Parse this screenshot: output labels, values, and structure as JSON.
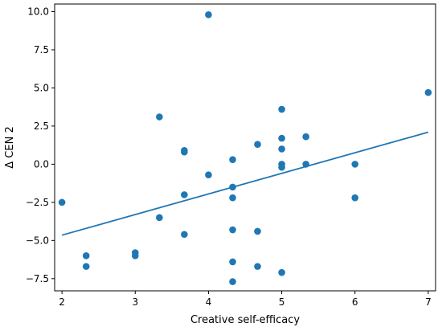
{
  "chart_data": {
    "type": "scatter",
    "title": "",
    "xlabel": "Creative self-efficacy",
    "ylabel": "Δ CEN 2",
    "xlim": [
      1.9,
      7.1
    ],
    "ylim": [
      -8.3,
      10.5
    ],
    "xticks": [
      2,
      3,
      4,
      5,
      6,
      7
    ],
    "yticks": [
      -7.5,
      -5.0,
      -2.5,
      0.0,
      2.5,
      5.0,
      7.5,
      10.0
    ],
    "xtick_labels": [
      "2",
      "3",
      "4",
      "5",
      "6",
      "7"
    ],
    "ytick_labels": [
      "−7.5",
      "−5.0",
      "−2.5",
      "0.0",
      "2.5",
      "5.0",
      "7.5",
      "10.0"
    ],
    "grid": false,
    "colors": {
      "points": "#1f77b4",
      "line": "#1f77b4"
    },
    "series": [
      {
        "type": "scatter",
        "points": [
          [
            2.0,
            -2.5
          ],
          [
            2.33,
            -6.0
          ],
          [
            2.33,
            -6.7
          ],
          [
            3.0,
            -5.8
          ],
          [
            3.0,
            -6.0
          ],
          [
            3.33,
            3.1
          ],
          [
            3.33,
            -3.5
          ],
          [
            3.67,
            0.9
          ],
          [
            3.67,
            0.8
          ],
          [
            3.67,
            -2.0
          ],
          [
            3.67,
            -4.6
          ],
          [
            4.0,
            9.8
          ],
          [
            4.0,
            -0.7
          ],
          [
            4.33,
            0.3
          ],
          [
            4.33,
            -1.5
          ],
          [
            4.33,
            -2.2
          ],
          [
            4.33,
            -4.3
          ],
          [
            4.33,
            -6.4
          ],
          [
            4.33,
            -7.7
          ],
          [
            4.67,
            1.3
          ],
          [
            4.67,
            -4.4
          ],
          [
            4.67,
            -6.7
          ],
          [
            5.0,
            3.6
          ],
          [
            5.0,
            1.7
          ],
          [
            5.0,
            1.0
          ],
          [
            5.0,
            0.0
          ],
          [
            5.0,
            -0.2
          ],
          [
            5.0,
            -7.1
          ],
          [
            5.33,
            1.8
          ],
          [
            5.33,
            0.0
          ],
          [
            6.0,
            0.0
          ],
          [
            6.0,
            -2.2
          ],
          [
            7.0,
            4.7
          ]
        ]
      },
      {
        "type": "line",
        "points": [
          [
            2.0,
            -4.65
          ],
          [
            7.0,
            2.1
          ]
        ]
      }
    ]
  }
}
